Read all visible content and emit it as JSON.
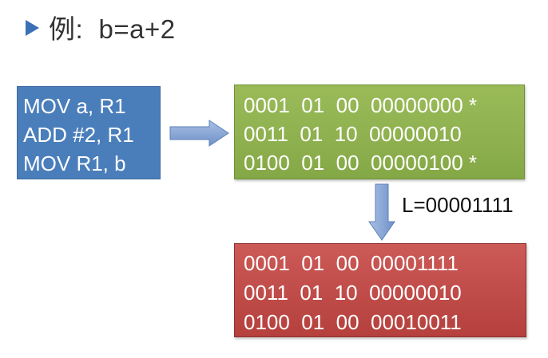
{
  "title": {
    "text": "例:  b=a+2",
    "bullet_icon": "triangle-bullet-icon",
    "bullet_color": "#3B6FB6"
  },
  "assembly": {
    "lines": [
      "MOV a, R1",
      "ADD #2, R1",
      "MOV R1, b"
    ],
    "color": "#4A7EBB"
  },
  "machine_code": {
    "lines": [
      "0001  01  00  00000000 *",
      "0011  01  10  00000010",
      "0100  01  00  00000100 *"
    ],
    "color": "#9BBB59"
  },
  "load_label": "L=00001111",
  "relocated_code": {
    "lines": [
      "0001  01  00  00001111",
      "0011  01  10  00000010",
      "0100  01  00  00010011"
    ],
    "color": "#C0504D"
  },
  "arrow_color": "#7F9FD0"
}
